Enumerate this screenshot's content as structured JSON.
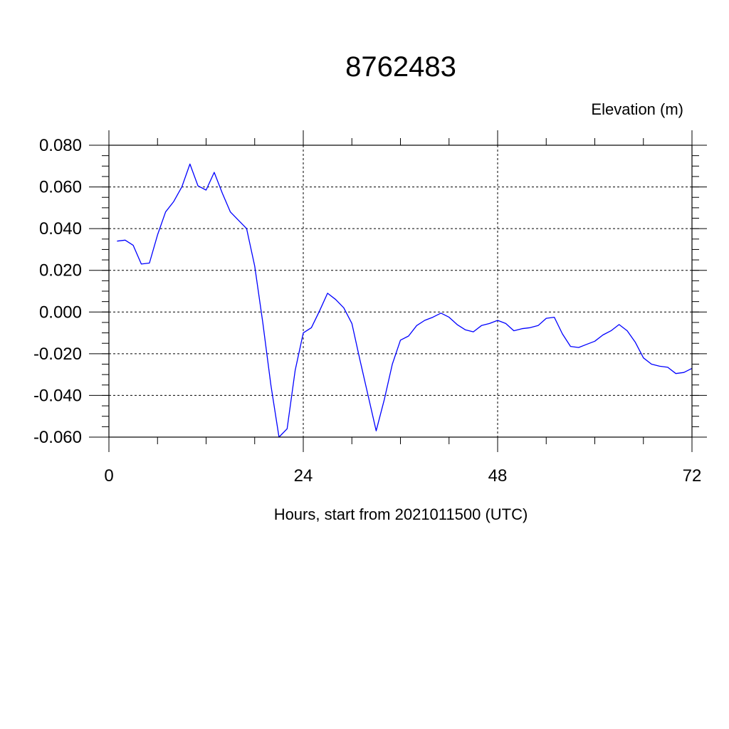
{
  "chart_data": {
    "type": "line",
    "title": "8762483",
    "ylabel": "Elevation (m)",
    "xlabel": "Hours, start from 2021011500 (UTC)",
    "xlim": [
      0,
      72
    ],
    "ylim": [
      -0.06,
      0.08
    ],
    "x_ticks": [
      0,
      24,
      48,
      72
    ],
    "x_tick_labels": [
      "0",
      "24",
      "48",
      "72"
    ],
    "y_ticks": [
      -0.06,
      -0.04,
      -0.02,
      0.0,
      0.02,
      0.04,
      0.06,
      0.08
    ],
    "y_tick_labels": [
      "-0.060",
      "-0.040",
      "-0.020",
      "0.000",
      "0.020",
      "0.040",
      "0.060",
      "0.080"
    ],
    "grid": true,
    "colors": {
      "series": "#0000ff",
      "axis": "#000000"
    },
    "series": [
      {
        "x": [
          1,
          2,
          3,
          4,
          5,
          6,
          7,
          8,
          9,
          10,
          11,
          12,
          13,
          14,
          15,
          16,
          17,
          18,
          19,
          20,
          21,
          22,
          23,
          24,
          25,
          26,
          27,
          28,
          29,
          30,
          31,
          32,
          33,
          34,
          35,
          36,
          37,
          38,
          39,
          40,
          41,
          42,
          43,
          44,
          45,
          46,
          47,
          48,
          49,
          50,
          51,
          52,
          53,
          54,
          55,
          56,
          57,
          58,
          59,
          60,
          61,
          62,
          63,
          64,
          65,
          66,
          67,
          68,
          69,
          70,
          71,
          72
        ],
        "values": [
          0.034,
          0.0345,
          0.032,
          0.023,
          0.0235,
          0.037,
          0.048,
          0.053,
          0.06,
          0.071,
          0.0605,
          0.0585,
          0.067,
          0.057,
          0.048,
          0.044,
          0.04,
          0.022,
          -0.005,
          -0.035,
          -0.06,
          -0.056,
          -0.028,
          -0.01,
          -0.0075,
          0.0005,
          0.009,
          0.006,
          0.002,
          -0.0055,
          -0.023,
          -0.04,
          -0.057,
          -0.042,
          -0.025,
          -0.0135,
          -0.0115,
          -0.0065,
          -0.004,
          -0.0025,
          -0.0005,
          -0.0025,
          -0.006,
          -0.0085,
          -0.0095,
          -0.0065,
          -0.0055,
          -0.004,
          -0.0055,
          -0.009,
          -0.008,
          -0.0075,
          -0.0065,
          -0.003,
          -0.0025,
          -0.0105,
          -0.0165,
          -0.017,
          -0.0155,
          -0.014,
          -0.011,
          -0.009,
          -0.006,
          -0.009,
          -0.0145,
          -0.022,
          -0.025,
          -0.026,
          -0.0265,
          -0.0295,
          -0.029,
          -0.027
        ]
      }
    ]
  }
}
